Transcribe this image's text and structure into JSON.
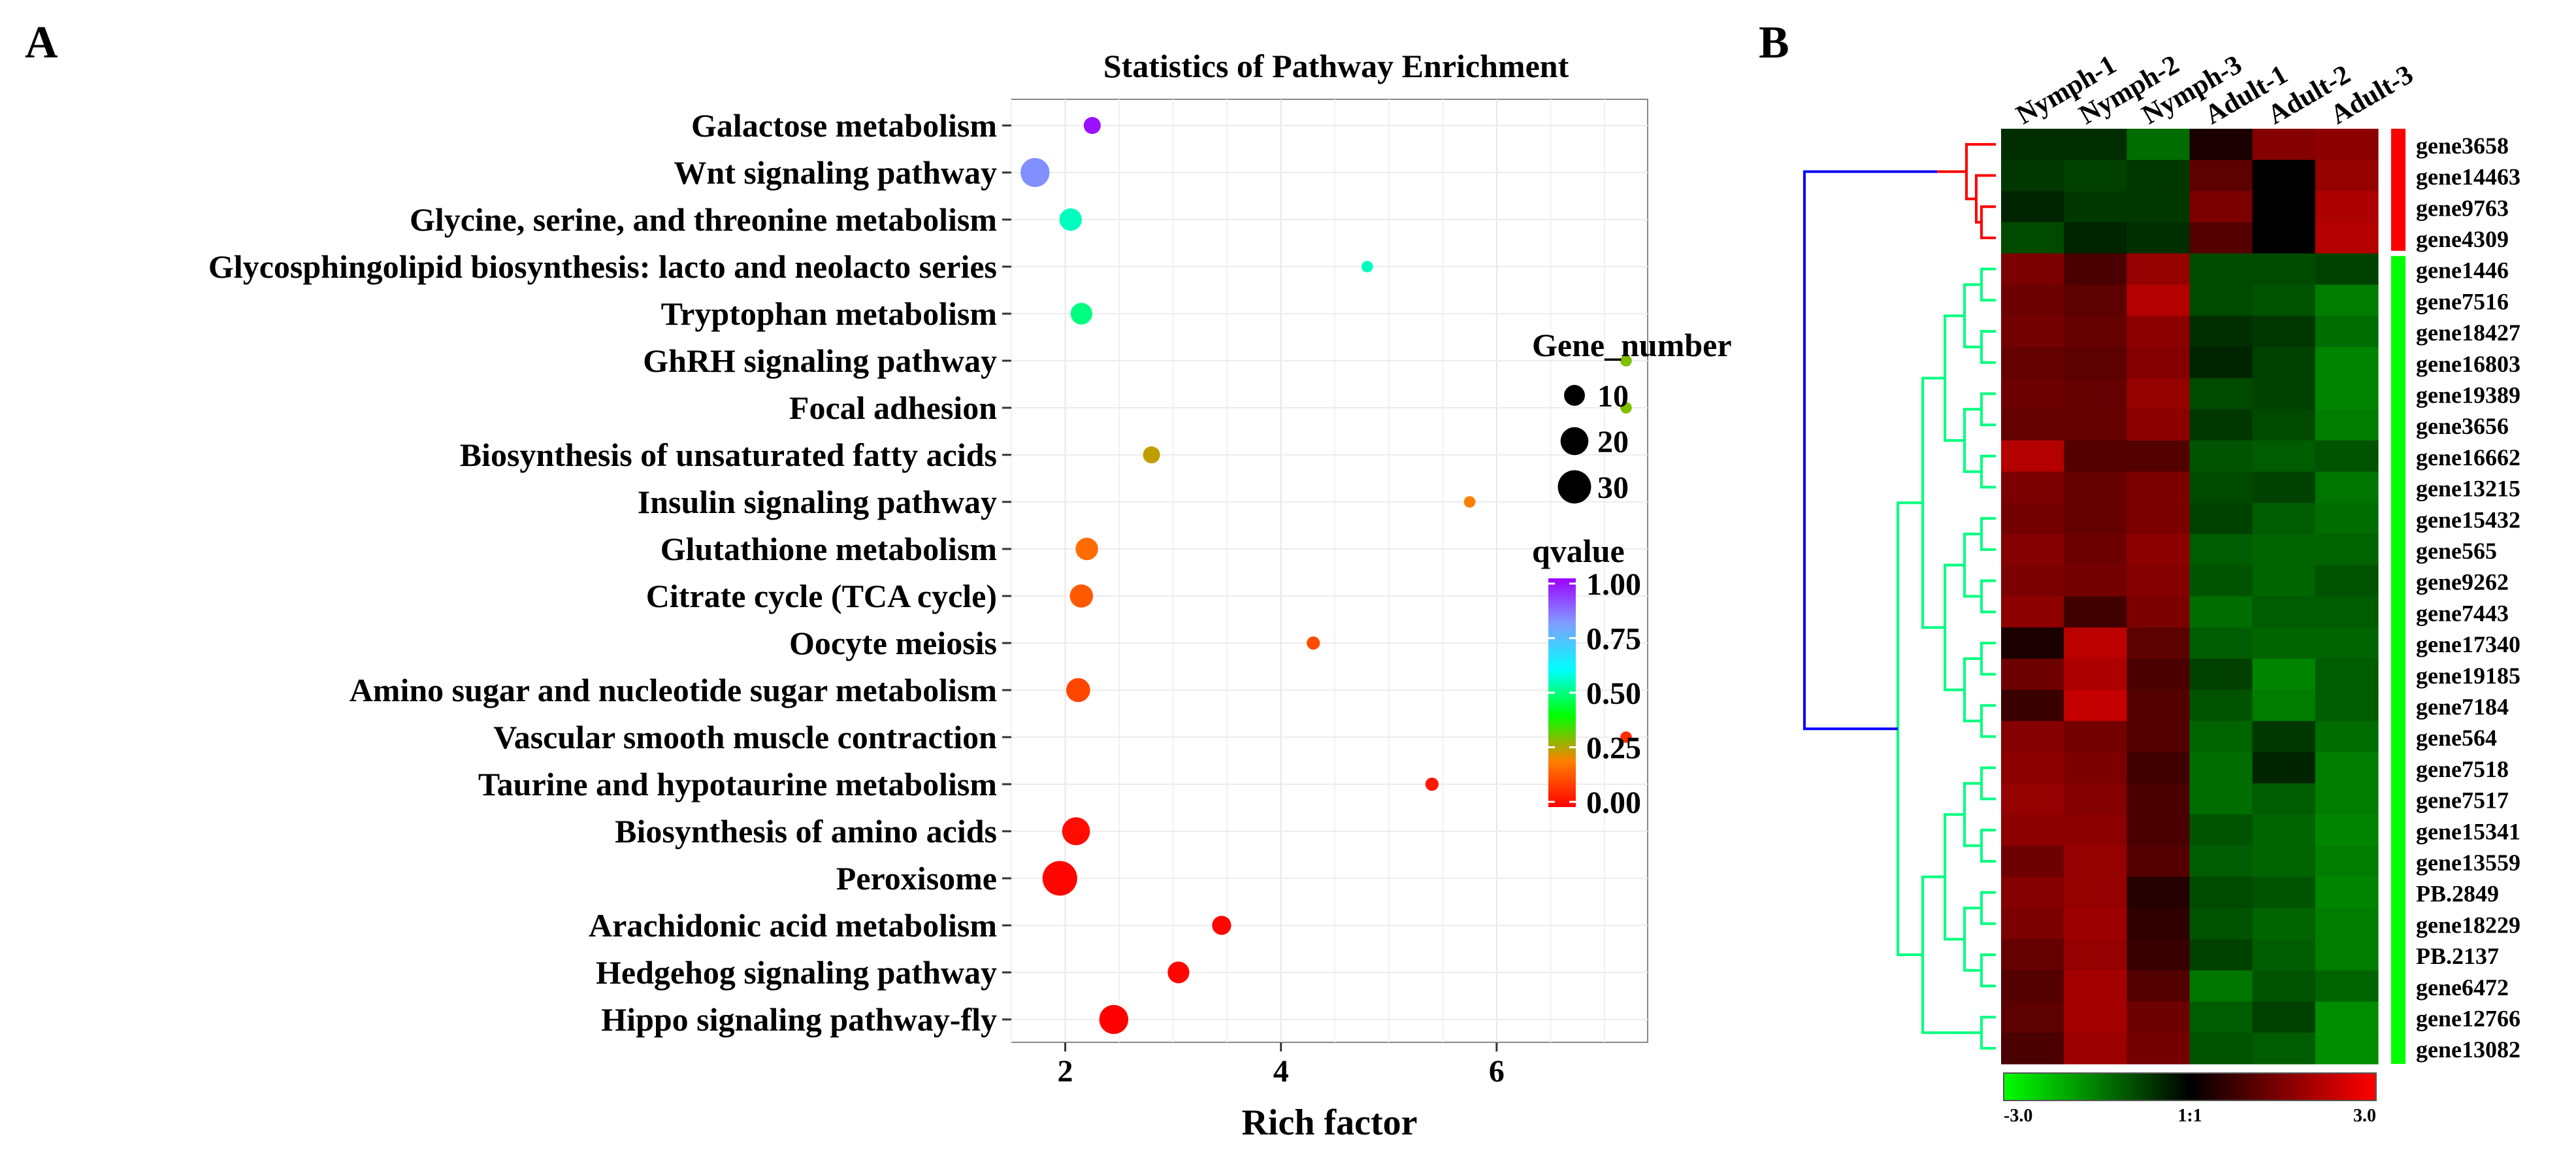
{
  "panels": {
    "a": "A",
    "b": "B"
  },
  "chart_data": [
    {
      "type": "scatter",
      "title": "Statistics of Pathway Enrichment",
      "xlabel": "Rich factor",
      "ylabel": "",
      "xlim": [
        1.5,
        7.4
      ],
      "xticks": [
        2,
        4,
        6
      ],
      "grid": true,
      "legend_position": "right",
      "size_legend_title": "Gene_number",
      "size_legend": [
        10,
        20,
        30
      ],
      "color_legend_title": "qvalue",
      "color_legend_ticks": [
        "1.00",
        "0.75",
        "0.50",
        "0.25",
        "0.00"
      ],
      "color_scale": [
        "#ff0000",
        "#ff7f00",
        "#00ff00",
        "#00ffff",
        "#7fa0ff",
        "#9d00ff"
      ],
      "categories": [
        "Galactose metabolism",
        "Wnt signaling pathway",
        "Glycine, serine, and threonine metabolism",
        "Glycosphingolipid biosynthesis: lacto and neolacto series",
        "Tryptophan metabolism",
        "GhRH signaling pathway",
        "Focal adhesion",
        "Biosynthesis of unsaturated fatty acids",
        "Insulin signaling pathway",
        "Glutathione metabolism",
        "Citrate cycle (TCA cycle)",
        "Oocyte meiosis",
        "Amino sugar and nucleotide sugar metabolism",
        "Vascular smooth muscle contraction",
        "Taurine and hypotaurine metabolism",
        "Biosynthesis of amino acids",
        "Peroxisome",
        "Arachidonic acid metabolism",
        "Hedgehog signaling pathway",
        "Hippo signaling pathway-fly"
      ],
      "points": [
        {
          "x": 2.25,
          "gene_number": 6,
          "qvalue": 0.98
        },
        {
          "x": 1.72,
          "gene_number": 22,
          "qvalue": 0.82
        },
        {
          "x": 2.05,
          "gene_number": 12,
          "qvalue": 0.55
        },
        {
          "x": 4.8,
          "gene_number": 2,
          "qvalue": 0.55
        },
        {
          "x": 2.15,
          "gene_number": 11,
          "qvalue": 0.5
        },
        {
          "x": 7.2,
          "gene_number": 2,
          "qvalue": 0.3
        },
        {
          "x": 7.2,
          "gene_number": 2,
          "qvalue": 0.3
        },
        {
          "x": 2.8,
          "gene_number": 6,
          "qvalue": 0.25
        },
        {
          "x": 5.75,
          "gene_number": 2,
          "qvalue": 0.2
        },
        {
          "x": 2.2,
          "gene_number": 12,
          "qvalue": 0.17
        },
        {
          "x": 2.15,
          "gene_number": 13,
          "qvalue": 0.14
        },
        {
          "x": 4.3,
          "gene_number": 3,
          "qvalue": 0.12
        },
        {
          "x": 2.12,
          "gene_number": 14,
          "qvalue": 0.11
        },
        {
          "x": 7.2,
          "gene_number": 2,
          "qvalue": 0.07
        },
        {
          "x": 5.4,
          "gene_number": 3,
          "qvalue": 0.04
        },
        {
          "x": 2.1,
          "gene_number": 20,
          "qvalue": 0.02
        },
        {
          "x": 1.95,
          "gene_number": 33,
          "qvalue": 0.01
        },
        {
          "x": 3.45,
          "gene_number": 8,
          "qvalue": 0.01
        },
        {
          "x": 3.05,
          "gene_number": 11,
          "qvalue": 0.01
        },
        {
          "x": 2.45,
          "gene_number": 22,
          "qvalue": 0.0
        }
      ]
    },
    {
      "type": "heatmap",
      "columns": [
        "Nymph-1",
        "Nymph-2",
        "Nymph-3",
        "Adult-1",
        "Adult-2",
        "Adult-3"
      ],
      "rows": [
        "gene3658",
        "gene14463",
        "gene9763",
        "gene4309",
        "gene1446",
        "gene7516",
        "gene18427",
        "gene16803",
        "gene19389",
        "gene3656",
        "gene16662",
        "gene13215",
        "gene15432",
        "gene565",
        "gene9262",
        "gene7443",
        "gene17340",
        "gene19185",
        "gene7184",
        "gene564",
        "gene7518",
        "gene7517",
        "gene15341",
        "gene13559",
        "PB.2849",
        "gene18229",
        "PB.2137",
        "gene6472",
        "gene12766",
        "gene13082"
      ],
      "values": [
        [
          -0.4,
          -0.4,
          -1.1,
          0.2,
          1.4,
          1.5
        ],
        [
          -0.5,
          -0.6,
          -0.5,
          0.9,
          0.0,
          1.6
        ],
        [
          -0.3,
          -0.5,
          -0.5,
          1.3,
          0.0,
          1.9
        ],
        [
          -0.7,
          -0.3,
          -0.4,
          0.8,
          0.0,
          2.0
        ],
        [
          1.3,
          0.7,
          1.6,
          -0.7,
          -0.7,
          -0.6
        ],
        [
          1.1,
          0.9,
          2.0,
          -0.7,
          -0.8,
          -1.3
        ],
        [
          1.2,
          1.0,
          1.5,
          -0.4,
          -0.5,
          -1.1
        ],
        [
          1.0,
          0.9,
          1.4,
          -0.3,
          -0.6,
          -1.4
        ],
        [
          1.1,
          1.0,
          1.6,
          -0.7,
          -0.6,
          -1.4
        ],
        [
          1.0,
          1.0,
          1.5,
          -0.5,
          -0.7,
          -1.3
        ],
        [
          2.0,
          0.8,
          0.8,
          -0.8,
          -0.9,
          -0.8
        ],
        [
          1.3,
          1.0,
          1.3,
          -0.7,
          -0.6,
          -1.2
        ],
        [
          1.2,
          1.0,
          1.3,
          -0.6,
          -0.9,
          -1.1
        ],
        [
          1.4,
          1.1,
          1.5,
          -0.9,
          -1.0,
          -1.0
        ],
        [
          1.3,
          1.2,
          1.4,
          -0.8,
          -1.0,
          -0.8
        ],
        [
          1.5,
          0.6,
          1.3,
          -1.1,
          -0.9,
          -0.9
        ],
        [
          0.2,
          2.1,
          0.9,
          -0.9,
          -1.0,
          -1.0
        ],
        [
          1.1,
          1.9,
          0.7,
          -0.6,
          -1.4,
          -0.9
        ],
        [
          0.5,
          2.2,
          0.8,
          -0.8,
          -1.3,
          -0.9
        ],
        [
          1.4,
          1.2,
          0.8,
          -1.0,
          -0.5,
          -1.1
        ],
        [
          1.5,
          1.3,
          0.6,
          -1.1,
          -0.3,
          -1.3
        ],
        [
          1.6,
          1.4,
          0.7,
          -1.1,
          -0.9,
          -1.3
        ],
        [
          1.5,
          1.5,
          0.7,
          -0.8,
          -1.0,
          -1.4
        ],
        [
          1.1,
          1.6,
          0.8,
          -0.9,
          -1.0,
          -1.3
        ],
        [
          1.4,
          1.6,
          0.3,
          -0.7,
          -0.8,
          -1.4
        ],
        [
          1.3,
          1.7,
          0.4,
          -0.8,
          -1.0,
          -1.3
        ],
        [
          1.0,
          1.6,
          0.5,
          -0.6,
          -0.9,
          -1.3
        ],
        [
          0.8,
          1.8,
          0.8,
          -1.2,
          -0.8,
          -1.0
        ],
        [
          0.9,
          1.8,
          1.1,
          -0.9,
          -0.6,
          -1.5
        ],
        [
          0.7,
          1.7,
          1.2,
          -0.8,
          -0.9,
          -1.5
        ]
      ],
      "colorbar": {
        "min_label": "-3.0",
        "mid_label": "1:1",
        "max_label": "3.0",
        "low_color": "#00ff00",
        "mid_color": "#000000",
        "high_color": "#ff0000"
      },
      "cluster_bar_colors": [
        "#ff0000",
        "#00ff00"
      ],
      "dendrogram_colors": [
        "#ff0000",
        "#00ff7f",
        "#0000ff"
      ]
    }
  ]
}
